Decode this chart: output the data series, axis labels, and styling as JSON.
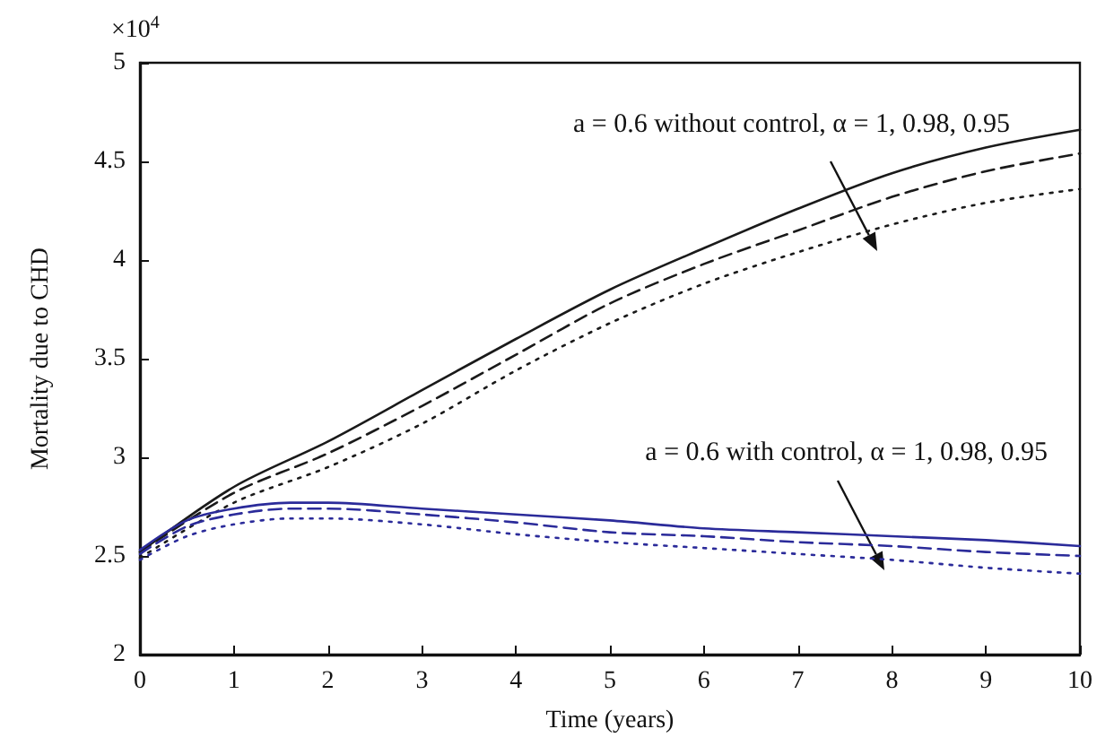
{
  "chart_data": {
    "type": "line",
    "xlabel": "Time (years)",
    "ylabel": "Mortality due to CHD",
    "xlim": [
      0,
      10
    ],
    "xticks": [
      0,
      1,
      2,
      3,
      4,
      5,
      6,
      7,
      8,
      9,
      10
    ],
    "ylim": [
      2,
      5
    ],
    "yticks": [
      2,
      2.5,
      3,
      3.5,
      4,
      4.5,
      5
    ],
    "grid": false,
    "marker": "none",
    "series": [
      {
        "color": "#1a1a1a",
        "line_style": "solid",
        "x": [
          0,
          1,
          2,
          3,
          4,
          5,
          6,
          7,
          8,
          9,
          10
        ],
        "values": [
          2.52,
          2.85,
          3.08,
          3.34,
          3.6,
          3.85,
          4.06,
          4.26,
          4.44,
          4.57,
          4.66
        ]
      },
      {
        "color": "#1a1a1a",
        "line_style": "dashed",
        "x": [
          0,
          1,
          2,
          3,
          4,
          5,
          6,
          7,
          8,
          9,
          10
        ],
        "values": [
          2.52,
          2.82,
          3.02,
          3.26,
          3.52,
          3.78,
          3.98,
          4.15,
          4.32,
          4.45,
          4.54
        ]
      },
      {
        "color": "#1a1a1a",
        "line_style": "dotted",
        "x": [
          0,
          1,
          2,
          3,
          4,
          5,
          6,
          7,
          8,
          9,
          10
        ],
        "values": [
          2.49,
          2.77,
          2.95,
          3.17,
          3.44,
          3.68,
          3.88,
          4.04,
          4.18,
          4.29,
          4.36
        ]
      },
      {
        "color": "#2b2b9a",
        "line_style": "solid",
        "x": [
          0,
          0.5,
          1,
          1.6,
          2,
          3,
          4,
          5,
          6,
          7,
          8,
          9,
          10
        ],
        "values": [
          2.53,
          2.68,
          2.74,
          2.77,
          2.77,
          2.74,
          2.71,
          2.68,
          2.64,
          2.62,
          2.6,
          2.58,
          2.55
        ]
      },
      {
        "color": "#2b2b9a",
        "line_style": "dashed",
        "x": [
          0,
          0.5,
          1,
          1.6,
          2,
          3,
          4,
          5,
          6,
          7,
          8,
          9,
          10
        ],
        "values": [
          2.51,
          2.65,
          2.71,
          2.74,
          2.74,
          2.71,
          2.67,
          2.62,
          2.6,
          2.57,
          2.55,
          2.52,
          2.5
        ]
      },
      {
        "color": "#2b2b9a",
        "line_style": "dotted",
        "x": [
          0,
          0.5,
          1,
          1.6,
          2,
          3,
          4,
          5,
          6,
          7,
          8,
          9,
          10
        ],
        "values": [
          2.48,
          2.6,
          2.66,
          2.69,
          2.69,
          2.66,
          2.61,
          2.57,
          2.54,
          2.51,
          2.48,
          2.44,
          2.41
        ]
      }
    ],
    "annotations": [
      "×10$^{4}$",
      "a = 0.6 without control, α = 1, 0.98, 0.95",
      "a = 0.6 with control, α = 1, 0.98, 0.95"
    ]
  }
}
